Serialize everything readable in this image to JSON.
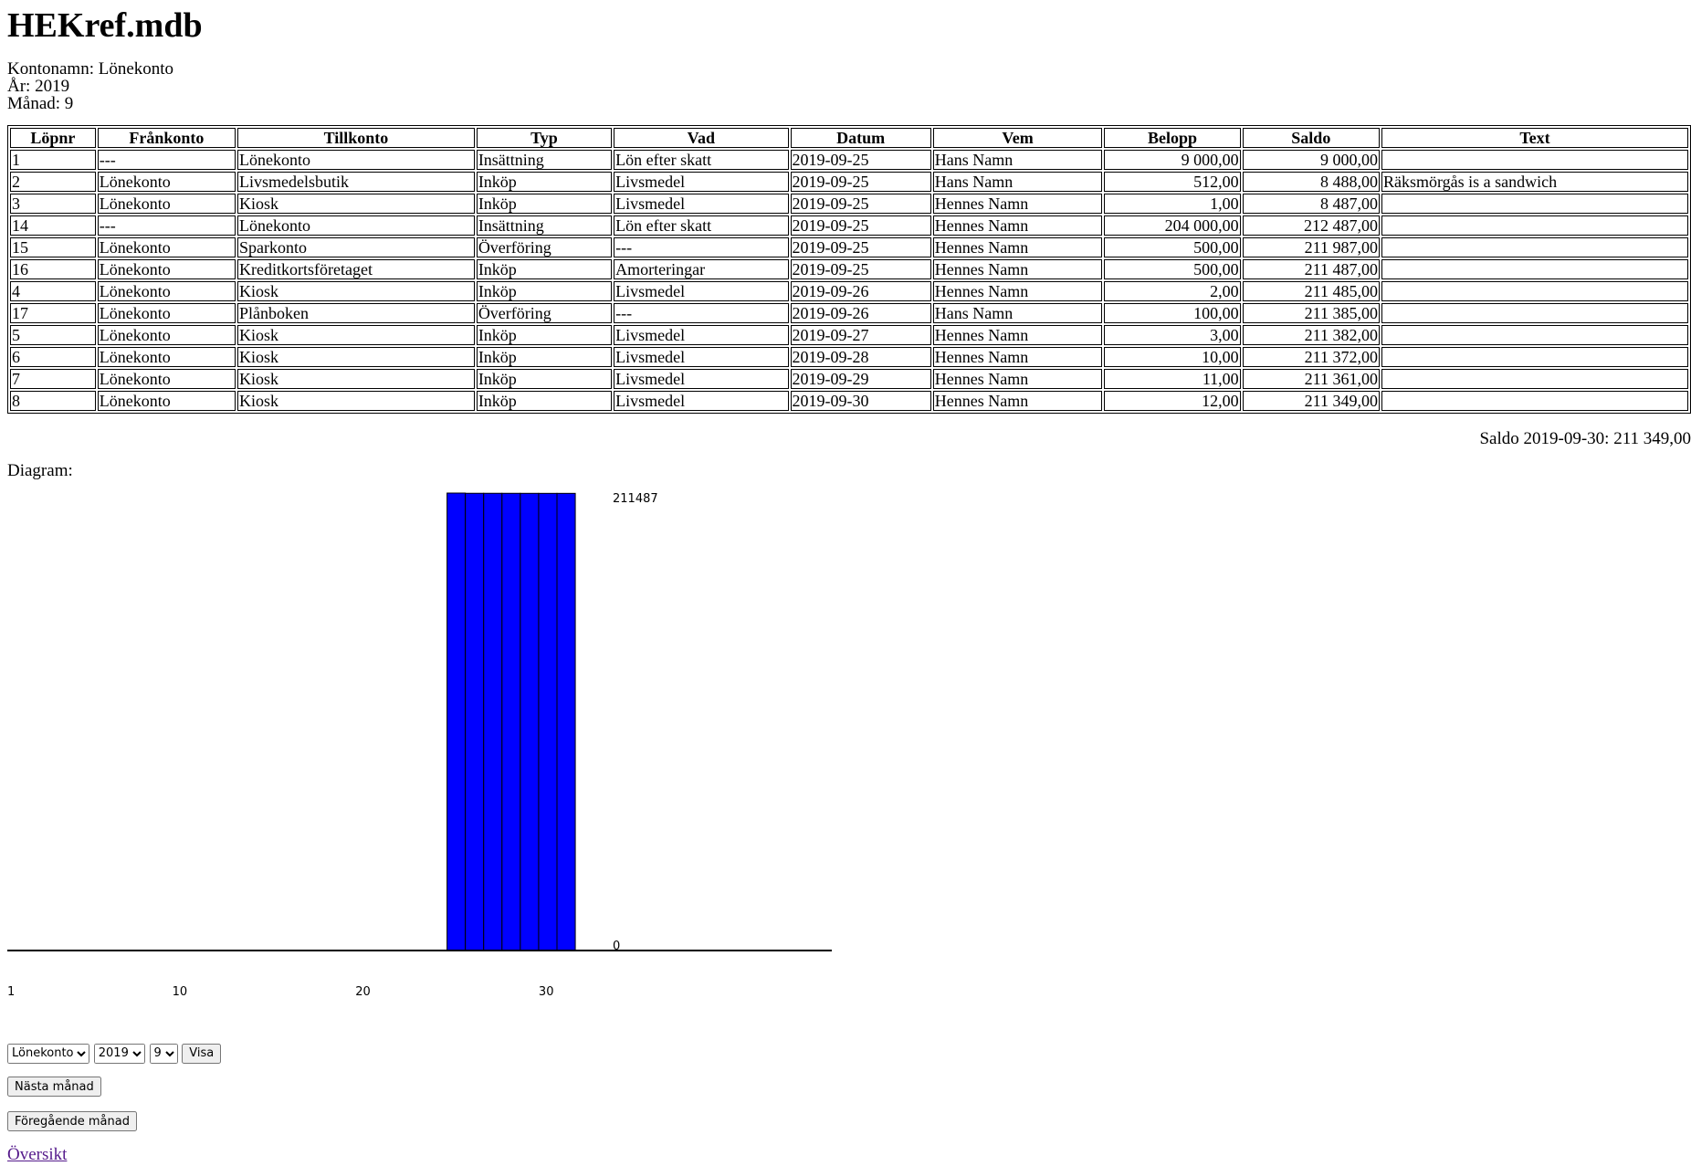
{
  "header": {
    "title": "HEKref.mdb",
    "info": [
      "Kontonamn: Lönekonto",
      "År: 2019",
      "Månad: 9"
    ]
  },
  "table": {
    "columns": [
      "Löpnr",
      "Frånkonto",
      "Tillkonto",
      "Typ",
      "Vad",
      "Datum",
      "Vem",
      "Belopp",
      "Saldo",
      "Text"
    ],
    "rows": [
      [
        "1",
        "---",
        "Lönekonto",
        "Insättning",
        "Lön efter skatt",
        "2019-09-25",
        "Hans Namn",
        "9 000,00",
        "9 000,00",
        ""
      ],
      [
        "2",
        "Lönekonto",
        "Livsmedelsbutik",
        "Inköp",
        "Livsmedel",
        "2019-09-25",
        "Hans Namn",
        "512,00",
        "8 488,00",
        "Räksmörgås is a sandwich"
      ],
      [
        "3",
        "Lönekonto",
        "Kiosk",
        "Inköp",
        "Livsmedel",
        "2019-09-25",
        "Hennes Namn",
        "1,00",
        "8 487,00",
        ""
      ],
      [
        "14",
        "---",
        "Lönekonto",
        "Insättning",
        "Lön efter skatt",
        "2019-09-25",
        "Hennes Namn",
        "204 000,00",
        "212 487,00",
        ""
      ],
      [
        "15",
        "Lönekonto",
        "Sparkonto",
        "Överföring",
        "---",
        "2019-09-25",
        "Hennes Namn",
        "500,00",
        "211 987,00",
        ""
      ],
      [
        "16",
        "Lönekonto",
        "Kreditkortsföretaget",
        "Inköp",
        "Amorteringar",
        "2019-09-25",
        "Hennes Namn",
        "500,00",
        "211 487,00",
        ""
      ],
      [
        "4",
        "Lönekonto",
        "Kiosk",
        "Inköp",
        "Livsmedel",
        "2019-09-26",
        "Hennes Namn",
        "2,00",
        "211 485,00",
        ""
      ],
      [
        "17",
        "Lönekonto",
        "Plånboken",
        "Överföring",
        "---",
        "2019-09-26",
        "Hans Namn",
        "100,00",
        "211 385,00",
        ""
      ],
      [
        "5",
        "Lönekonto",
        "Kiosk",
        "Inköp",
        "Livsmedel",
        "2019-09-27",
        "Hennes Namn",
        "3,00",
        "211 382,00",
        ""
      ],
      [
        "6",
        "Lönekonto",
        "Kiosk",
        "Inköp",
        "Livsmedel",
        "2019-09-28",
        "Hennes Namn",
        "10,00",
        "211 372,00",
        ""
      ],
      [
        "7",
        "Lönekonto",
        "Kiosk",
        "Inköp",
        "Livsmedel",
        "2019-09-29",
        "Hennes Namn",
        "11,00",
        "211 361,00",
        ""
      ],
      [
        "8",
        "Lönekonto",
        "Kiosk",
        "Inköp",
        "Livsmedel",
        "2019-09-30",
        "Hennes Namn",
        "12,00",
        "211 349,00",
        ""
      ]
    ]
  },
  "saldo": "Saldo 2019-09-30: 211 349,00",
  "diagram_label": "Diagram:",
  "chart": {
    "type": "bar",
    "x": [
      25,
      26,
      27,
      28,
      29,
      30,
      31
    ],
    "values": [
      211487,
      211385,
      211382,
      211372,
      211361,
      211349,
      211349
    ],
    "color": "#0000ff",
    "xlim": [
      1,
      46
    ],
    "xticks": [
      1,
      10,
      20,
      30
    ],
    "ylim": [
      0,
      211487
    ],
    "yticks": [
      0,
      211487
    ]
  },
  "form": {
    "konto": "Lönekonto",
    "year": "2019",
    "month": "9",
    "show": "Visa",
    "next": "Nästa månad",
    "prev": "Föregående månad",
    "link": "Översikt"
  }
}
